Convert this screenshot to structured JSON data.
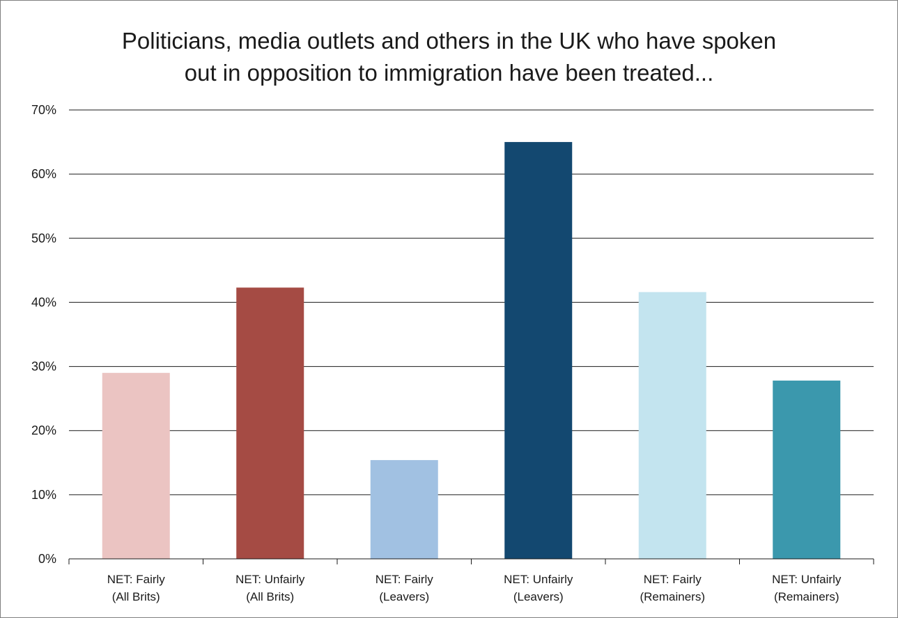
{
  "chart_data": {
    "type": "bar",
    "title_lines": [
      "Politicians, media outlets and others in the UK who have spoken",
      "out in opposition to immigration have been treated..."
    ],
    "xlabel": "",
    "ylabel": "",
    "ylim": [
      0,
      70
    ],
    "y_unit": "%",
    "y_ticks": [
      0,
      10,
      20,
      30,
      40,
      50,
      60,
      70
    ],
    "y_tick_labels": [
      "0%",
      "10%",
      "20%",
      "30%",
      "40%",
      "50%",
      "60%",
      "70%"
    ],
    "grid": true,
    "legend": "none",
    "categories": [
      [
        "NET: Fairly",
        "(All Brits)"
      ],
      [
        "NET: Unfairly",
        "(All Brits)"
      ],
      [
        "NET: Fairly",
        "(Leavers)"
      ],
      [
        "NET: Unfairly",
        "(Leavers)"
      ],
      [
        "NET: Fairly",
        "(Remainers)"
      ],
      [
        "NET: Unfairly",
        "(Remainers)"
      ]
    ],
    "values": [
      29,
      42.3,
      15.4,
      65,
      41.6,
      27.8
    ],
    "colors": [
      "#ebc4c2",
      "#a54b44",
      "#a1c1e2",
      "#134870",
      "#c3e4ef",
      "#3b98ad"
    ]
  }
}
